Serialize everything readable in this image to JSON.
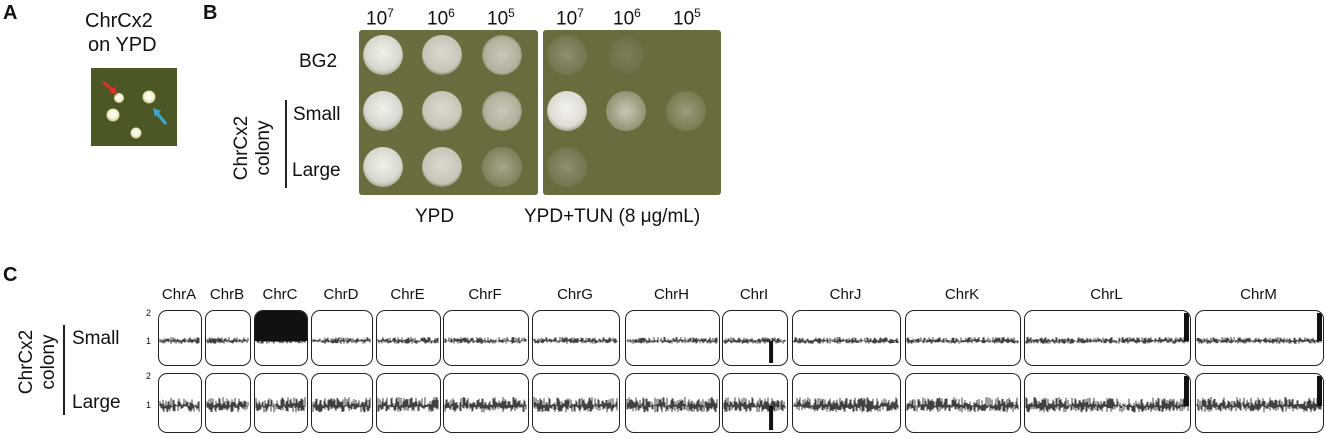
{
  "panels": {
    "a": {
      "letter": "A",
      "title_line1": "ChrCx2",
      "title_line2": "on YPD",
      "plate_color": "#4d5a26",
      "arrow_red": "#e0302a",
      "arrow_blue": "#3aa6d8"
    },
    "b": {
      "letter": "B",
      "dilutions": [
        {
          "base": "10",
          "exp": "7"
        },
        {
          "base": "10",
          "exp": "6"
        },
        {
          "base": "10",
          "exp": "5"
        },
        {
          "base": "10",
          "exp": "7"
        },
        {
          "base": "10",
          "exp": "6"
        },
        {
          "base": "10",
          "exp": "5"
        }
      ],
      "row_labels": [
        "BG2",
        "Small",
        "Large"
      ],
      "group_label_line1": "ChrCx2",
      "group_label_line2": "colony",
      "plate_labels": [
        "YPD",
        "YPD+TUN (8 μg/mL)"
      ],
      "plate_color": "#67693c"
    },
    "c": {
      "letter": "C",
      "chromosomes": [
        "ChrA",
        "ChrB",
        "ChrC",
        "ChrD",
        "ChrE",
        "ChrF",
        "ChrG",
        "ChrH",
        "ChrI",
        "ChrJ",
        "ChrK",
        "ChrL",
        "ChrM"
      ],
      "row_labels": [
        "Small",
        "Large"
      ],
      "group_label_line1": "ChrCx2",
      "group_label_line2": "colony",
      "y_ticks": [
        "2",
        "1"
      ]
    }
  }
}
